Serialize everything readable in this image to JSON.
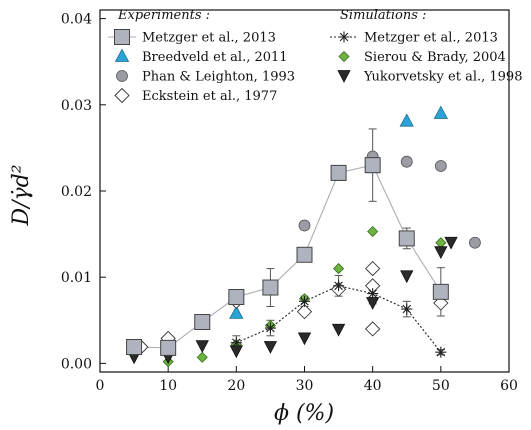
{
  "chart_data": {
    "type": "scatter",
    "xlabel": "ϕ (%)",
    "ylabel": "D/γ̇d²",
    "xlim": [
      0,
      60
    ],
    "ylim": [
      -0.001,
      0.041
    ],
    "xticks": [
      0,
      10,
      20,
      30,
      40,
      50,
      60
    ],
    "yticks": [
      0.0,
      0.01,
      0.02,
      0.03,
      0.04
    ],
    "ytick_labels": [
      "0.00",
      "0.01",
      "0.02",
      "0.03",
      "0.04"
    ],
    "grid": false,
    "legend": {
      "experiments_title": "Experiments :",
      "simulations_title": "Simulations :"
    },
    "series": [
      {
        "name": "Metzger et al., 2013",
        "group": "experiments",
        "marker": "square",
        "color": "#aeb3bd",
        "line": true,
        "line_color": "#a9adb5",
        "x": [
          5,
          10,
          15,
          20,
          25,
          30,
          35,
          40,
          45,
          50
        ],
        "y": [
          0.0019,
          0.0018,
          0.0048,
          0.0077,
          0.0088,
          0.0126,
          0.0221,
          0.023,
          0.0145,
          0.0083
        ],
        "err": [
          0.0002,
          0.0002,
          0.0003,
          0.0006,
          0.0022,
          0.0005,
          0.0008,
          0.0042,
          0.0012,
          0.0028
        ]
      },
      {
        "name": "Breedveld et al., 2011",
        "group": "experiments",
        "marker": "triangle-up",
        "color": "#2ba3d6",
        "x": [
          20,
          30,
          35,
          40,
          45,
          50
        ],
        "y": [
          0.0058,
          0.0124,
          0.0218,
          0.0227,
          0.0281,
          0.029
        ]
      },
      {
        "name": "Phan & Leighton, 1993",
        "group": "experiments",
        "marker": "circle",
        "color": "#9a9da3",
        "x": [
          30,
          35,
          40,
          45,
          50,
          55
        ],
        "y": [
          0.016,
          0.0223,
          0.024,
          0.0234,
          0.0229,
          0.014
        ]
      },
      {
        "name": "Eckstein et al., 1977",
        "group": "experiments",
        "marker": "diamond",
        "color": "#ffffff",
        "x": [
          6,
          10,
          20,
          30,
          35,
          40,
          40,
          40,
          50
        ],
        "y": [
          0.0019,
          0.0029,
          0.0072,
          0.006,
          0.0086,
          0.011,
          0.009,
          0.004,
          0.007
        ]
      },
      {
        "name": "Metzger et al., 2013",
        "group": "simulations",
        "marker": "asterisk",
        "color": "#222222",
        "line": true,
        "line_style": "dotted",
        "x": [
          20,
          25,
          30,
          35,
          40,
          45,
          50
        ],
        "y": [
          0.0024,
          0.0041,
          0.0072,
          0.009,
          0.0081,
          0.0063,
          0.0013
        ],
        "err": [
          0.0008,
          0.0009,
          0.0006,
          0.0012,
          0.0012,
          0.0009,
          0.0003
        ]
      },
      {
        "name": "Sierou & Brady, 2004",
        "group": "simulations",
        "marker": "diamond-small",
        "color": "#6cb33f",
        "x": [
          10,
          15,
          20,
          25,
          30,
          35,
          40,
          45,
          50
        ],
        "y": [
          0.0002,
          0.0007,
          0.0022,
          0.0044,
          0.0075,
          0.011,
          0.0153,
          0.0142,
          0.014
        ]
      },
      {
        "name": "Yukorvetsky et al., 1998",
        "group": "simulations",
        "marker": "triangle-down",
        "color": "#2a2a2a",
        "x": [
          5,
          10,
          15,
          20,
          25,
          30,
          35,
          40,
          45,
          50,
          51.5
        ],
        "y": [
          0.0007,
          0.0007,
          0.002,
          0.0014,
          0.0019,
          0.0029,
          0.0039,
          0.007,
          0.0101,
          0.0129,
          0.014
        ]
      }
    ]
  }
}
